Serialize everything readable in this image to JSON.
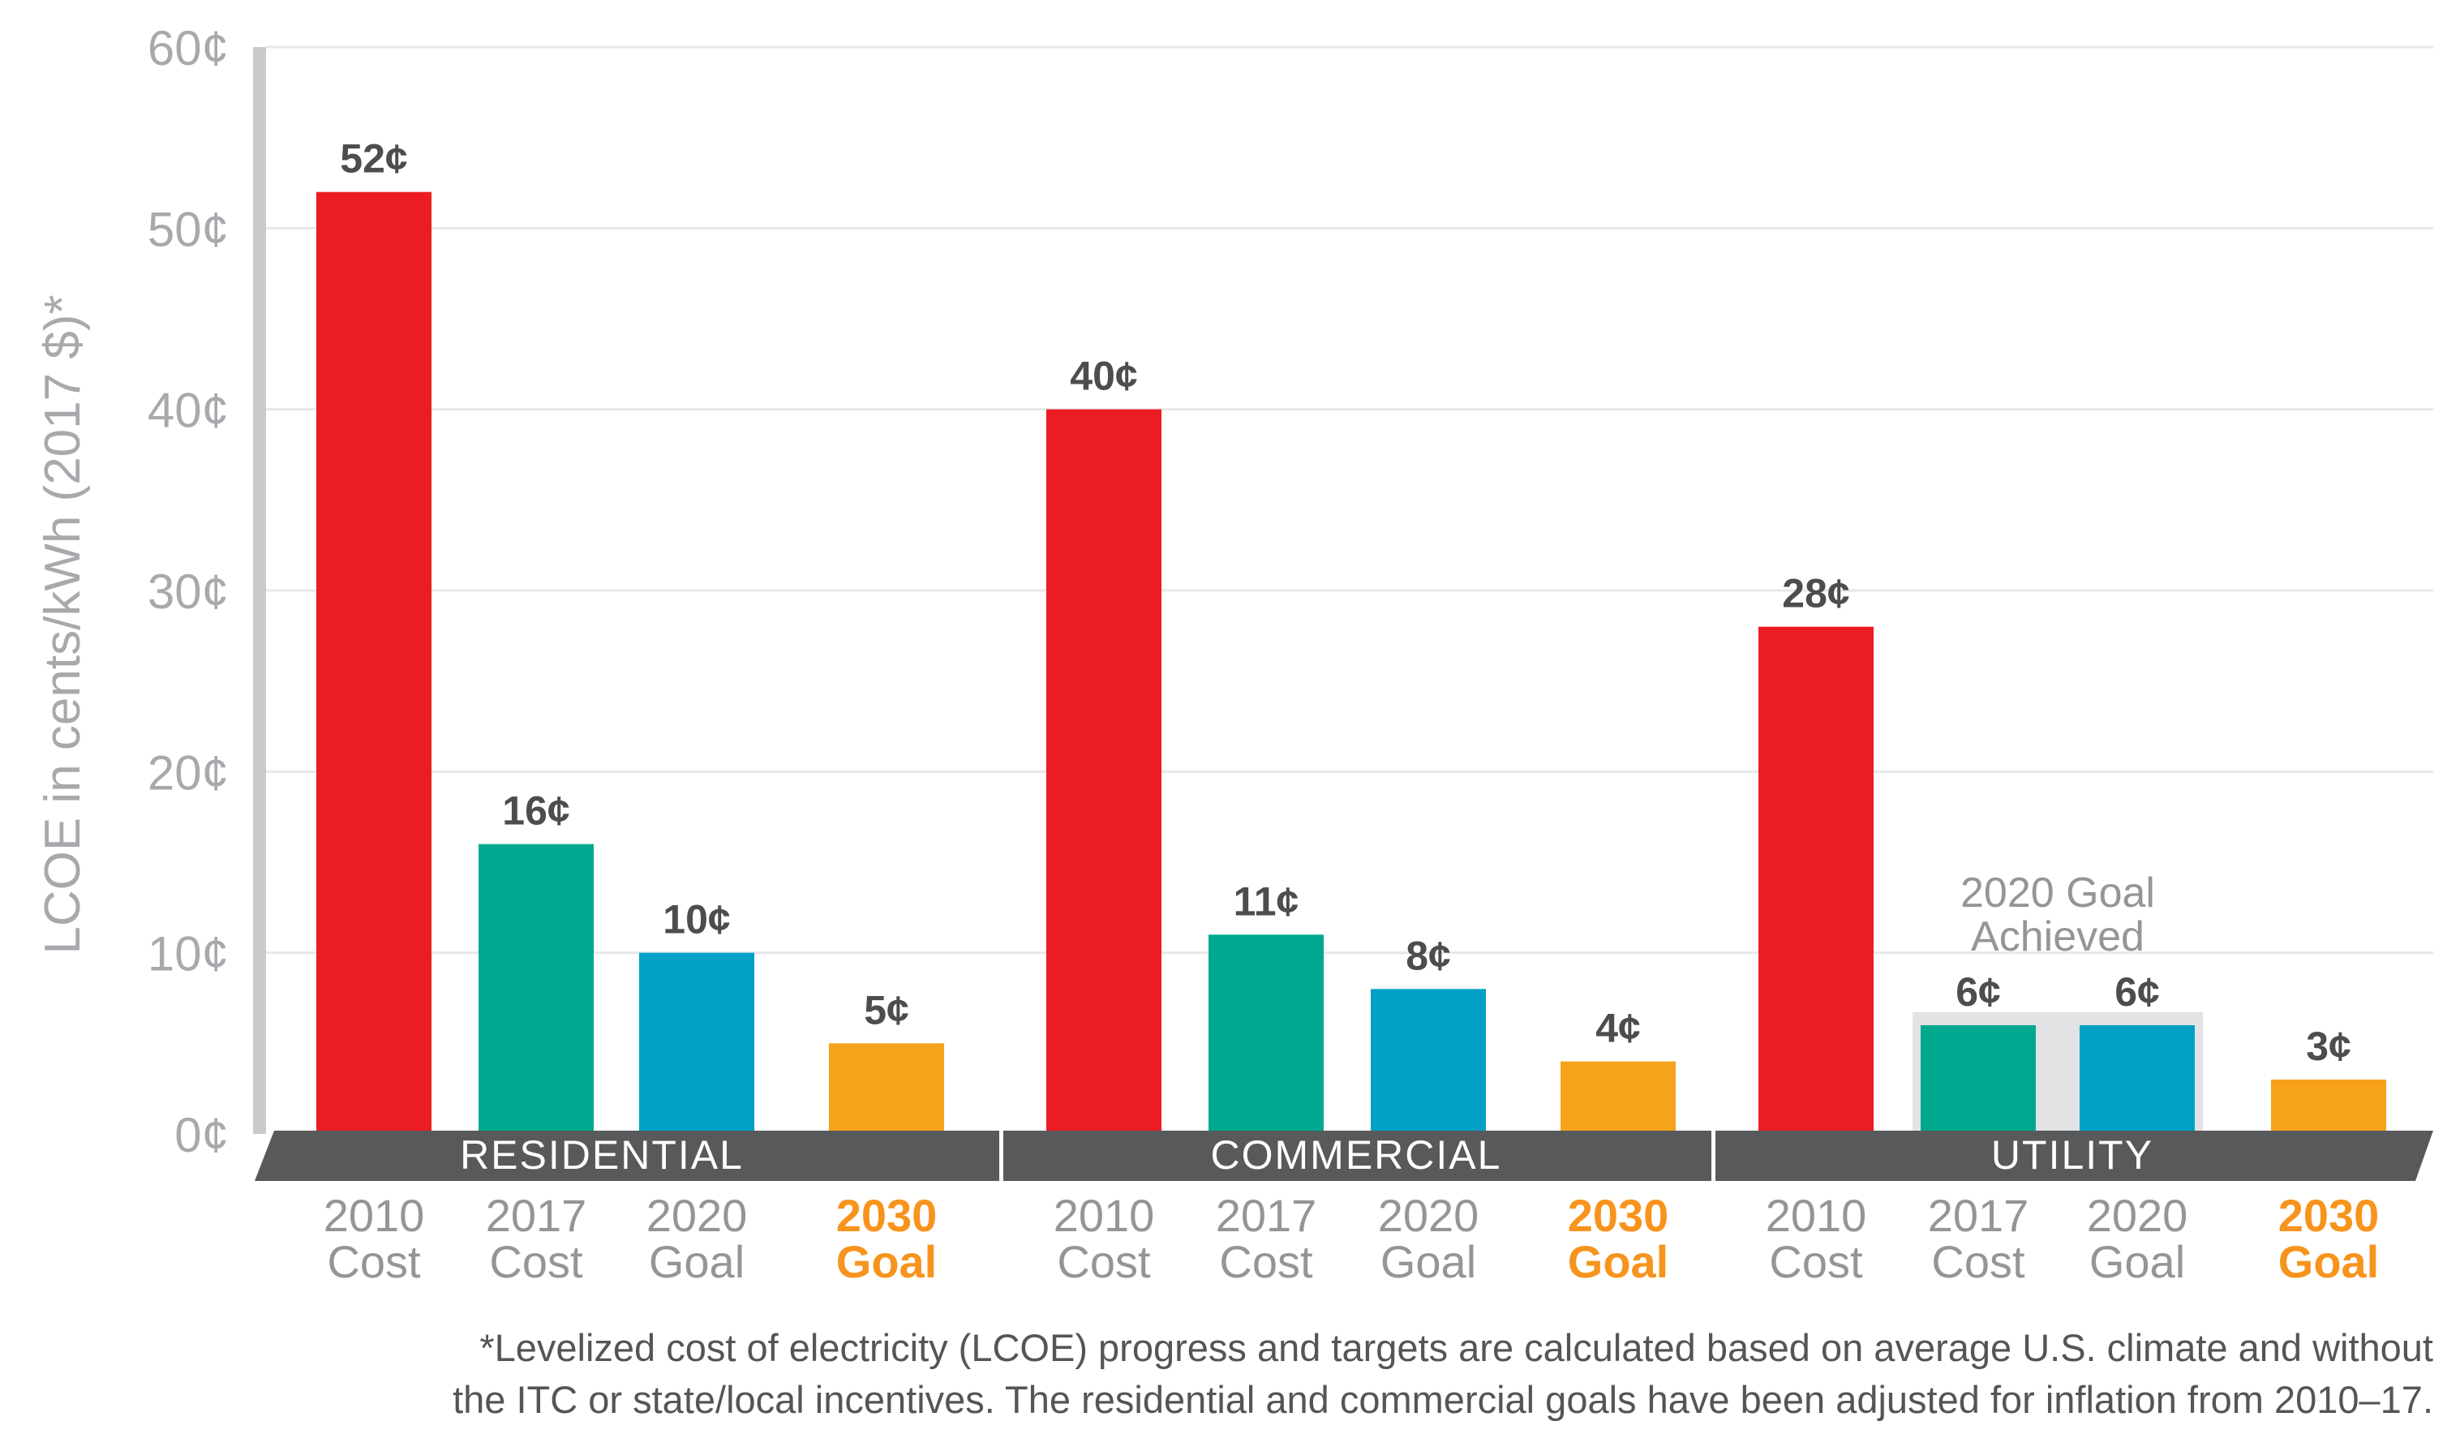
{
  "chart_data": {
    "type": "bar",
    "ylabel": "LCOE in cents/kWh (2017 $)*",
    "ylim": [
      0,
      60
    ],
    "yticks": [
      0,
      10,
      20,
      30,
      40,
      50,
      60
    ],
    "ytick_labels": [
      "0¢",
      "10¢",
      "20¢",
      "30¢",
      "40¢",
      "50¢",
      "60¢"
    ],
    "grid": true,
    "categories": [
      {
        "line1": "2010",
        "line2": "Cost"
      },
      {
        "line1": "2017",
        "line2": "Cost"
      },
      {
        "line1": "2020",
        "line2": "Goal"
      },
      {
        "line1": "2030",
        "line2": "Goal"
      }
    ],
    "groups": [
      {
        "name": "RESIDENTIAL",
        "values": [
          52,
          16,
          10,
          5
        ],
        "labels": [
          "52¢",
          "16¢",
          "10¢",
          "5¢"
        ]
      },
      {
        "name": "COMMERCIAL",
        "values": [
          40,
          11,
          8,
          4
        ],
        "labels": [
          "40¢",
          "11¢",
          "8¢",
          "4¢"
        ]
      },
      {
        "name": "UTILITY",
        "values": [
          28,
          6,
          6,
          3
        ],
        "labels": [
          "28¢",
          "6¢",
          "6¢",
          "3¢"
        ]
      }
    ],
    "annotation": {
      "group": "UTILITY",
      "line1": "2020 Goal",
      "line2": "Achieved"
    },
    "colors": {
      "cost_2010": "#ec1c24",
      "cost_2017": "#00a88f",
      "goal_2020": "#00a0c6",
      "goal_2030": "#f7a21b",
      "goal_2030_text": "#f7941d",
      "band": "#58595b",
      "axis_text": "#a7a9ac",
      "category_text": "#939598",
      "value_label": "#4d4d4f",
      "achieved_box": "#e2e3e4",
      "grid": "#e8e8e8"
    }
  },
  "footnote": {
    "line1": "*Levelized cost of electricity (LCOE) progress and targets are calculated based on average U.S. climate and without",
    "line2": "the ITC or state/local incentives. The residential and commercial goals have been adjusted for inflation from 2010–17."
  }
}
